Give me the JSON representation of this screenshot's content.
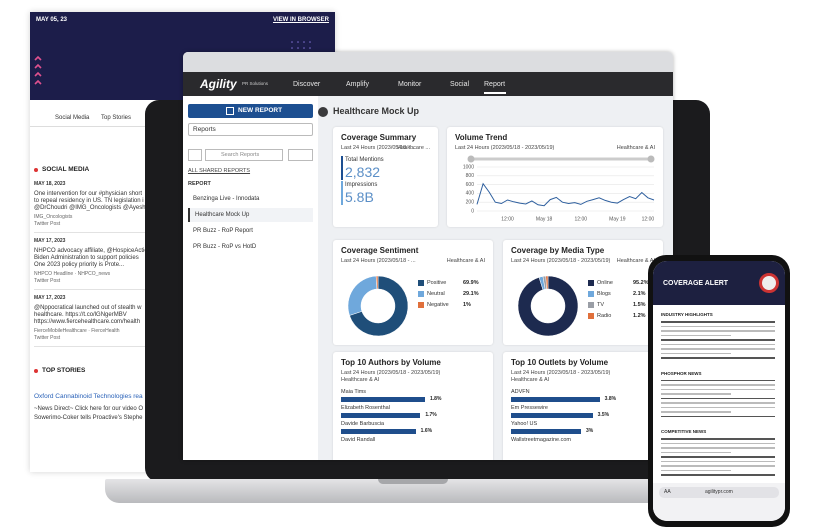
{
  "newsletter": {
    "date": "MAY 05, 23",
    "view_link": "VIEW IN BROWSER",
    "tabs": [
      "Social Media",
      "Top Stories"
    ],
    "social_heading": "SOCIAL MEDIA",
    "posts": [
      {
        "date": "MAY 18, 2023",
        "lines": [
          "One intervention for our #physician short",
          "to repeal residency in US. TN legislation i",
          "@DrChoudri @IMG_Oncologists @Ayesh"
        ],
        "source": "IMG_Oncologists",
        "kind": "Twitter Post"
      },
      {
        "date": "MAY 17, 2023",
        "lines": [
          "NHPCO advocacy affiliate, @HospiceAction",
          "Biden Administration to support policies",
          "One 2023 policy priority is Prote..."
        ],
        "source": "NHPCO Headline  ·  NHPCO_news",
        "kind": "Twitter Post"
      },
      {
        "date": "MAY 17, 2023",
        "lines": [
          "@Nppocratical launched out of stealth w",
          "healthcare. https://t.co/lGNgerMBV",
          "https://www.fiercehealthcare.com/health"
        ],
        "source": "FierceMobileHealthcare  ·  FierceHealth",
        "kind": "Twitter Post"
      }
    ],
    "top_heading": "TOP STORIES",
    "story_title": "Oxford Cannabinoid Technologies rea",
    "story_lines": [
      "~News Direct~ Click here for our video O",
      "Sowerimo-Coker tells Proactive's Stephe"
    ]
  },
  "app": {
    "brand": "Agility",
    "brand_sub": "PR Solutions",
    "nav": [
      "Discover",
      "Amplify",
      "Monitor",
      "Social",
      "Report"
    ],
    "new_report": "NEW REPORT",
    "reports_select": "Reports",
    "search_placeholder": "Search Reports",
    "shared_link": "ALL SHARED REPORTS",
    "list_heading": "REPORT",
    "reports": [
      "Benzinga Live - Innodata",
      "Healthcare Mock Up",
      "PR Buzz - RoP Report",
      "PR Buzz - RoP vs HotD"
    ],
    "page_title": "Healthcare Mock Up",
    "summary": {
      "title": "Coverage Summary",
      "subtitle": "Last 24 Hours (2023/05/18 - ...",
      "tag": "Healthcare ...",
      "mentions_label": "Total Mentions",
      "mentions": "2,832",
      "impressions_label": "Impressions",
      "impressions": "5.8B"
    }
  },
  "phone": {
    "title": "COVERAGE ALERT",
    "sections": [
      "INDUSTRY HIGHLIGHTS",
      "PHOSPHOR NEWS",
      "COMPETITIVE NEWS"
    ],
    "url": "agilitypr.com",
    "text_size": "AA"
  },
  "chart_data": [
    {
      "type": "line",
      "title": "Volume Trend",
      "subtitle": "Last 24 Hours (2023/05/18 - 2023/05/19)",
      "annotation": "Healthcare & AI",
      "categories": [
        null,
        null,
        null,
        null,
        null,
        "12:00",
        null,
        null,
        null,
        null,
        null,
        "May 18",
        null,
        null,
        null,
        null,
        null,
        "12:00",
        null,
        null,
        null,
        null,
        null,
        "May 19",
        null,
        null,
        null,
        null,
        "12:00",
        null
      ],
      "values": [
        150,
        620,
        430,
        200,
        170,
        250,
        210,
        180,
        160,
        230,
        140,
        120,
        260,
        310,
        200,
        170,
        190,
        150,
        220,
        260,
        300,
        240,
        200,
        180,
        260,
        330,
        280,
        420,
        300,
        250
      ],
      "color": "#2e5f9e",
      "ylim": [
        0,
        1000
      ],
      "yticks": [
        0,
        200,
        400,
        600,
        800,
        1000
      ],
      "grid": true
    },
    {
      "type": "donut",
      "title": "Coverage Sentiment",
      "subtitle": "Last 24 Hours (2023/05/18 - ...",
      "annotation": "Healthcare & AI",
      "categories": [
        "Positive",
        "Neutral",
        "Negative"
      ],
      "values": [
        69.9,
        29.1,
        1
      ],
      "value_labels": [
        "69.9%",
        "29.1%",
        "1%"
      ],
      "colors": [
        "#1f4e79",
        "#6fa8dc",
        "#e0703c"
      ]
    },
    {
      "type": "donut",
      "title": "Coverage by Media Type",
      "subtitle": "Last 24 Hours (2023/05/18 - 2023/05/19)",
      "annotation": "Healthcare & AI",
      "categories": [
        "Online",
        "Blogs",
        "TV",
        "Radio"
      ],
      "values": [
        95.2,
        2.1,
        1.5,
        1.2
      ],
      "value_labels": [
        "95.2%",
        "2.1%",
        "1.5%",
        "1.2%"
      ],
      "colors": [
        "#1d2a4f",
        "#6fa8dc",
        "#9a9ea6",
        "#e0703c"
      ]
    },
    {
      "type": "bar",
      "title": "Top 10 Authors by Volume",
      "subtitle": "Last 24 Hours (2023/05/18 - 2023/05/19)",
      "annotation": "Healthcare & AI",
      "categories": [
        "Maia Tims",
        "Elizabeth Rosenthal",
        "Davide Barbuscia",
        "David Randall"
      ],
      "values": [
        1.8,
        1.7,
        1.6,
        null
      ],
      "value_labels": [
        "1.8%",
        "1.7%",
        "1.6%",
        null
      ],
      "color": "#1f4e8c",
      "xlim": [
        0,
        3
      ]
    },
    {
      "type": "bar",
      "title": "Top 10 Outlets by Volume",
      "subtitle": "Last 24 Hours (2023/05/18 - 2023/05/19)",
      "annotation": "Healthcare & AI",
      "categories": [
        "ADVFN",
        "Em Pressewire",
        "Yahoo! US",
        "Wallstreetmagazine.com"
      ],
      "values": [
        3.8,
        3.5,
        3,
        null
      ],
      "value_labels": [
        "3.8%",
        "3.5%",
        "3%",
        null
      ],
      "color": "#1f4e8c",
      "xlim": [
        0,
        6
      ]
    }
  ]
}
